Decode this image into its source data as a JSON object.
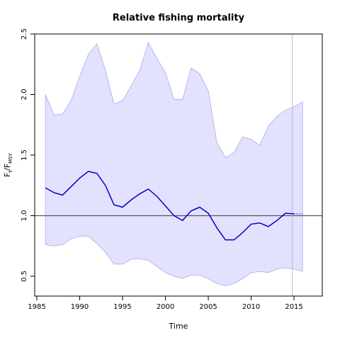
{
  "chart_data": {
    "type": "line",
    "title": "Relative fishing mortality",
    "xlabel": "Time",
    "ylabel_parts": [
      "F",
      "t",
      "/F",
      "MSY"
    ],
    "x": [
      1986,
      1987,
      1988,
      1989,
      1990,
      1991,
      1992,
      1993,
      1994,
      1995,
      1996,
      1997,
      1998,
      1999,
      2000,
      2001,
      2002,
      2003,
      2004,
      2005,
      2006,
      2007,
      2008,
      2009,
      2010,
      2011,
      2012,
      2013,
      2014,
      2015,
      2016
    ],
    "band": {
      "color": "#e2e2ff",
      "edge": "#a8a8f0",
      "upper": [
        2.0,
        1.83,
        1.84,
        1.95,
        2.15,
        2.33,
        2.42,
        2.2,
        1.92,
        1.95,
        2.07,
        2.2,
        2.43,
        2.3,
        2.18,
        1.96,
        1.96,
        2.22,
        2.17,
        2.03,
        1.6,
        1.48,
        1.52,
        1.65,
        1.63,
        1.58,
        1.74,
        1.82,
        1.87,
        1.9,
        1.94
      ],
      "lower": [
        0.76,
        0.75,
        0.76,
        0.81,
        0.83,
        0.83,
        0.77,
        0.7,
        0.6,
        0.6,
        0.64,
        0.645,
        0.63,
        0.58,
        0.53,
        0.5,
        0.48,
        0.51,
        0.51,
        0.48,
        0.44,
        0.42,
        0.44,
        0.48,
        0.53,
        0.54,
        0.53,
        0.56,
        0.57,
        0.56,
        0.54
      ]
    },
    "series": [
      {
        "color": "#0000cc",
        "style": "solid",
        "values": [
          1.23,
          1.19,
          1.17,
          1.24,
          1.31,
          1.365,
          1.35,
          1.25,
          1.09,
          1.07,
          1.13,
          1.18,
          1.22,
          1.16,
          1.08,
          1.0,
          0.96,
          1.04,
          1.07,
          1.02,
          0.9,
          0.8,
          0.8,
          0.86,
          0.93,
          0.94,
          0.91,
          0.96,
          1.02,
          1.015,
          null
        ]
      },
      {
        "color": "#0000cc",
        "style": "dotted",
        "values": [
          null,
          null,
          null,
          null,
          null,
          null,
          null,
          null,
          null,
          null,
          null,
          null,
          null,
          null,
          null,
          null,
          null,
          null,
          null,
          null,
          null,
          null,
          null,
          null,
          null,
          null,
          null,
          null,
          null,
          1.015,
          1.015
        ]
      }
    ],
    "hline": 1,
    "vline": 2014.8,
    "xlim": [
      1984.75,
      2018.3
    ],
    "ylim": [
      0.336,
      2.5
    ],
    "xticks": [
      1985,
      1990,
      1995,
      2000,
      2005,
      2010,
      2015
    ],
    "yticks": [
      0.5,
      {
        "value": 1,
        "label": "1.0"
      },
      1.5,
      {
        "value": 2,
        "label": "2.0"
      },
      2.5
    ]
  }
}
